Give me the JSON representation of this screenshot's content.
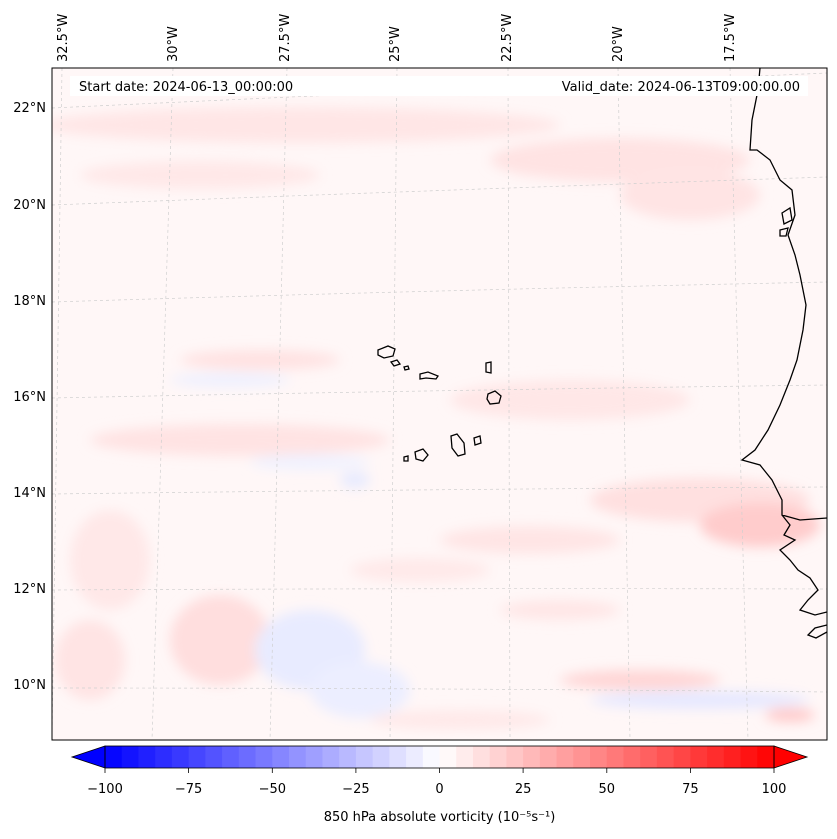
{
  "header": {
    "start_date": "Start date: 2024-06-13_00:00:00",
    "valid_date": "Valid_date: 2024-06-13T09:00:00.00"
  },
  "map": {
    "lon_labels": [
      "32.5°W",
      "30°W",
      "27.5°W",
      "25°W",
      "22.5°W",
      "20°W",
      "17.5°W"
    ],
    "lat_labels": [
      "22°N",
      "20°N",
      "18°N",
      "16°N",
      "14°N",
      "12°N",
      "10°N"
    ],
    "gridlines": true,
    "field": "850 hPa absolute vorticity",
    "coastline_color": "#000000"
  },
  "colorbar": {
    "ticks": [
      "−100",
      "−75",
      "−50",
      "−25",
      "0",
      "25",
      "50",
      "75",
      "100"
    ],
    "label": "850 hPa absolute vorticity (10⁻⁵s⁻¹)",
    "range": [
      -100,
      100
    ],
    "colormap": "bwr",
    "low_color": "#0000ff",
    "mid_color": "#ffffff",
    "high_color": "#ff0000"
  }
}
